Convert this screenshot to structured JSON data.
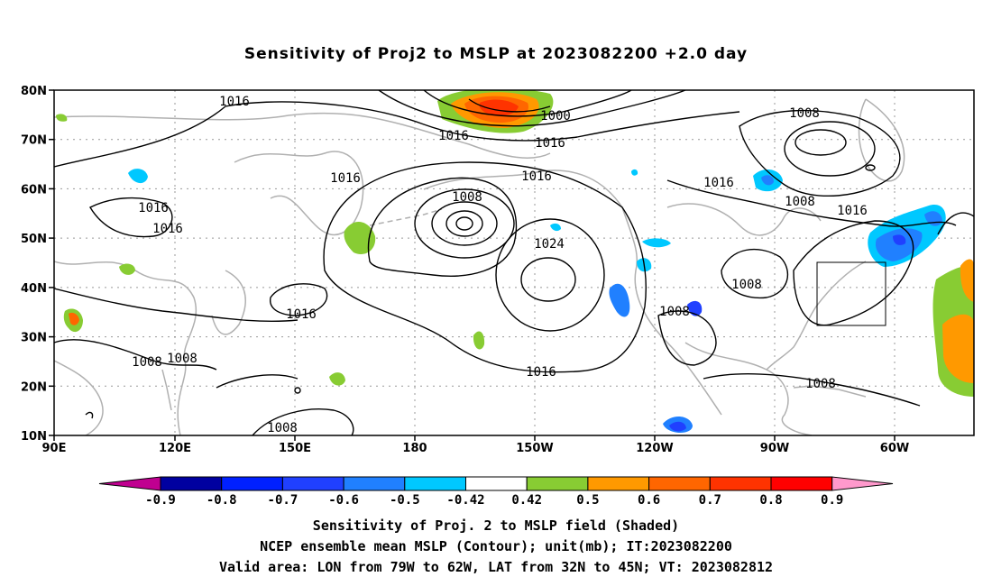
{
  "title": "Sensitivity of Proj2 to MSLP at 2023082200 +2.0 day",
  "map": {
    "lat_labels": [
      "80N",
      "70N",
      "60N",
      "50N",
      "40N",
      "30N",
      "20N",
      "10N"
    ],
    "lon_labels": [
      "90E",
      "120E",
      "150E",
      "180",
      "150W",
      "120W",
      "90W",
      "60W"
    ],
    "contour_labels": [
      "1016",
      "1016",
      "1016",
      "1016",
      "1016",
      "1016",
      "1016",
      "1016",
      "1016",
      "1016",
      "1000",
      "1008",
      "1008",
      "1024",
      "1008",
      "1008",
      "1008",
      "1008",
      "1008",
      "1008",
      "1016"
    ],
    "valid_box": {
      "lon": [
        "79W",
        "62W"
      ],
      "lat": [
        "32N",
        "45N"
      ]
    }
  },
  "colorbar": {
    "labels": [
      "-0.9",
      "-0.8",
      "-0.7",
      "-0.6",
      "-0.5",
      "-0.42",
      "0.42",
      "0.5",
      "0.6",
      "0.7",
      "0.8",
      "0.9"
    ],
    "colors": [
      "#c00090",
      "#0000a0",
      "#0020ff",
      "#2040ff",
      "#2080ff",
      "#00c8ff",
      "#ffffff",
      "#88cc33",
      "#ff9900",
      "#ff6600",
      "#ff3300",
      "#ff0000",
      "#ff99cc"
    ]
  },
  "captions": {
    "line1": "Sensitivity of Proj. 2 to MSLP field (Shaded)",
    "line2": "NCEP ensemble mean MSLP (Contour); unit(mb); IT:2023082200",
    "line3": "Valid area: LON from 79W to 62W, LAT from 32N to 45N; VT: 2023082812"
  }
}
